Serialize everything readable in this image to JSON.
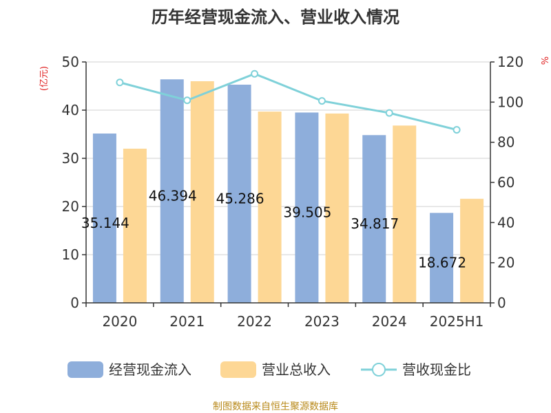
{
  "chart_data": {
    "type": "bar",
    "title": "历年经营现金流入、营业收入情况",
    "categories": [
      "2020",
      "2021",
      "2022",
      "2023",
      "2024",
      "2025H1"
    ],
    "y_left": {
      "unit": "(亿元)",
      "range": [
        0,
        50
      ],
      "ticks": [
        0,
        10,
        20,
        30,
        40,
        50
      ]
    },
    "y_right": {
      "unit": "%",
      "range": [
        0,
        120
      ],
      "ticks": [
        0,
        20,
        40,
        60,
        80,
        100,
        120
      ]
    },
    "series": [
      {
        "name": "经营现金流入",
        "type": "bar",
        "axis": "left",
        "color": "#8eaedb",
        "values": [
          35.144,
          46.394,
          45.286,
          39.505,
          34.817,
          18.672
        ],
        "labels": [
          "35.144",
          "46.394",
          "45.286",
          "39.505",
          "34.817",
          "18.672"
        ]
      },
      {
        "name": "营业总收入",
        "type": "bar",
        "axis": "left",
        "color": "#fdd795",
        "values": [
          32.0,
          46.0,
          39.7,
          39.3,
          36.8,
          21.6
        ]
      },
      {
        "name": "营收现金比",
        "type": "line",
        "axis": "right",
        "color": "#7fd1d9",
        "values": [
          109.8,
          100.9,
          114.1,
          100.6,
          94.6,
          86.2
        ]
      }
    ],
    "grid": true,
    "legend": "bottom"
  },
  "source": "制图数据来自恒生聚源数据库",
  "colors": {
    "axis_unit": "#e02020",
    "source": "#b8891a",
    "grid": "#d0d0d0",
    "axis": "#333333"
  }
}
